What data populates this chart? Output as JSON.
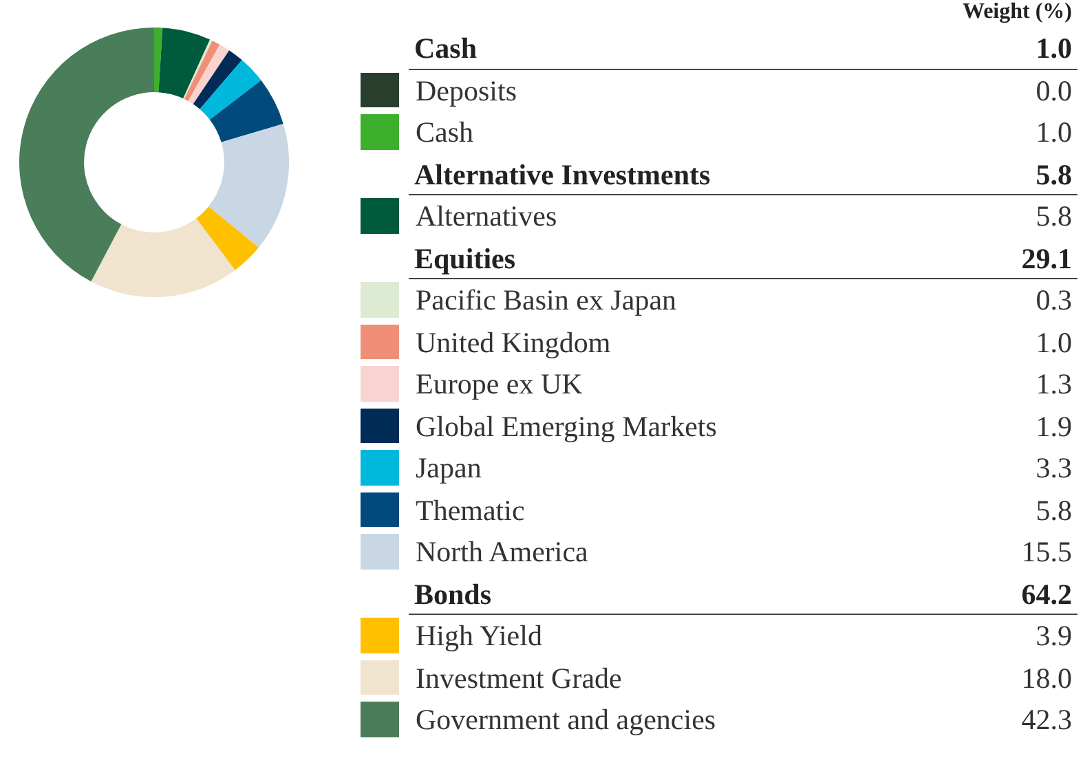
{
  "chart_data": {
    "type": "donut",
    "legend_title": "Weight (%)",
    "legend": "right",
    "data_labels": true,
    "categories": [
      "Deposits",
      "Cash",
      "Alternatives",
      "Pacific Basin ex Japan",
      "United Kingdom",
      "Europe ex UK",
      "Global Emerging Markets",
      "Japan",
      "Thematic",
      "North America",
      "High Yield",
      "Investment Grade",
      "Government and agencies"
    ],
    "values": [
      0.0,
      1.0,
      5.8,
      0.3,
      1.0,
      1.3,
      1.9,
      3.3,
      5.8,
      15.5,
      3.9,
      18.0,
      42.3
    ],
    "value_labels": [
      "0.0",
      "1.0",
      "5.8",
      "0.3",
      "1.0",
      "1.3",
      "1.9",
      "3.3",
      "5.8",
      "15.5",
      "3.9",
      "18.0",
      "42.3"
    ],
    "colors": [
      "#2a3f2e",
      "#3cb02c",
      "#005a3c",
      "#ddebd2",
      "#f08f78",
      "#f9d3cf",
      "#002c57",
      "#00b8dc",
      "#004a7c",
      "#c8d7e3",
      "#ffc000",
      "#f0e4cf",
      "#4a7d59"
    ],
    "annotations": [
      "Cash",
      "Alternative Investments",
      "Equities",
      "Bonds"
    ],
    "totals": [
      "1.0",
      "5.8",
      "29.1",
      "64.2"
    ]
  }
}
